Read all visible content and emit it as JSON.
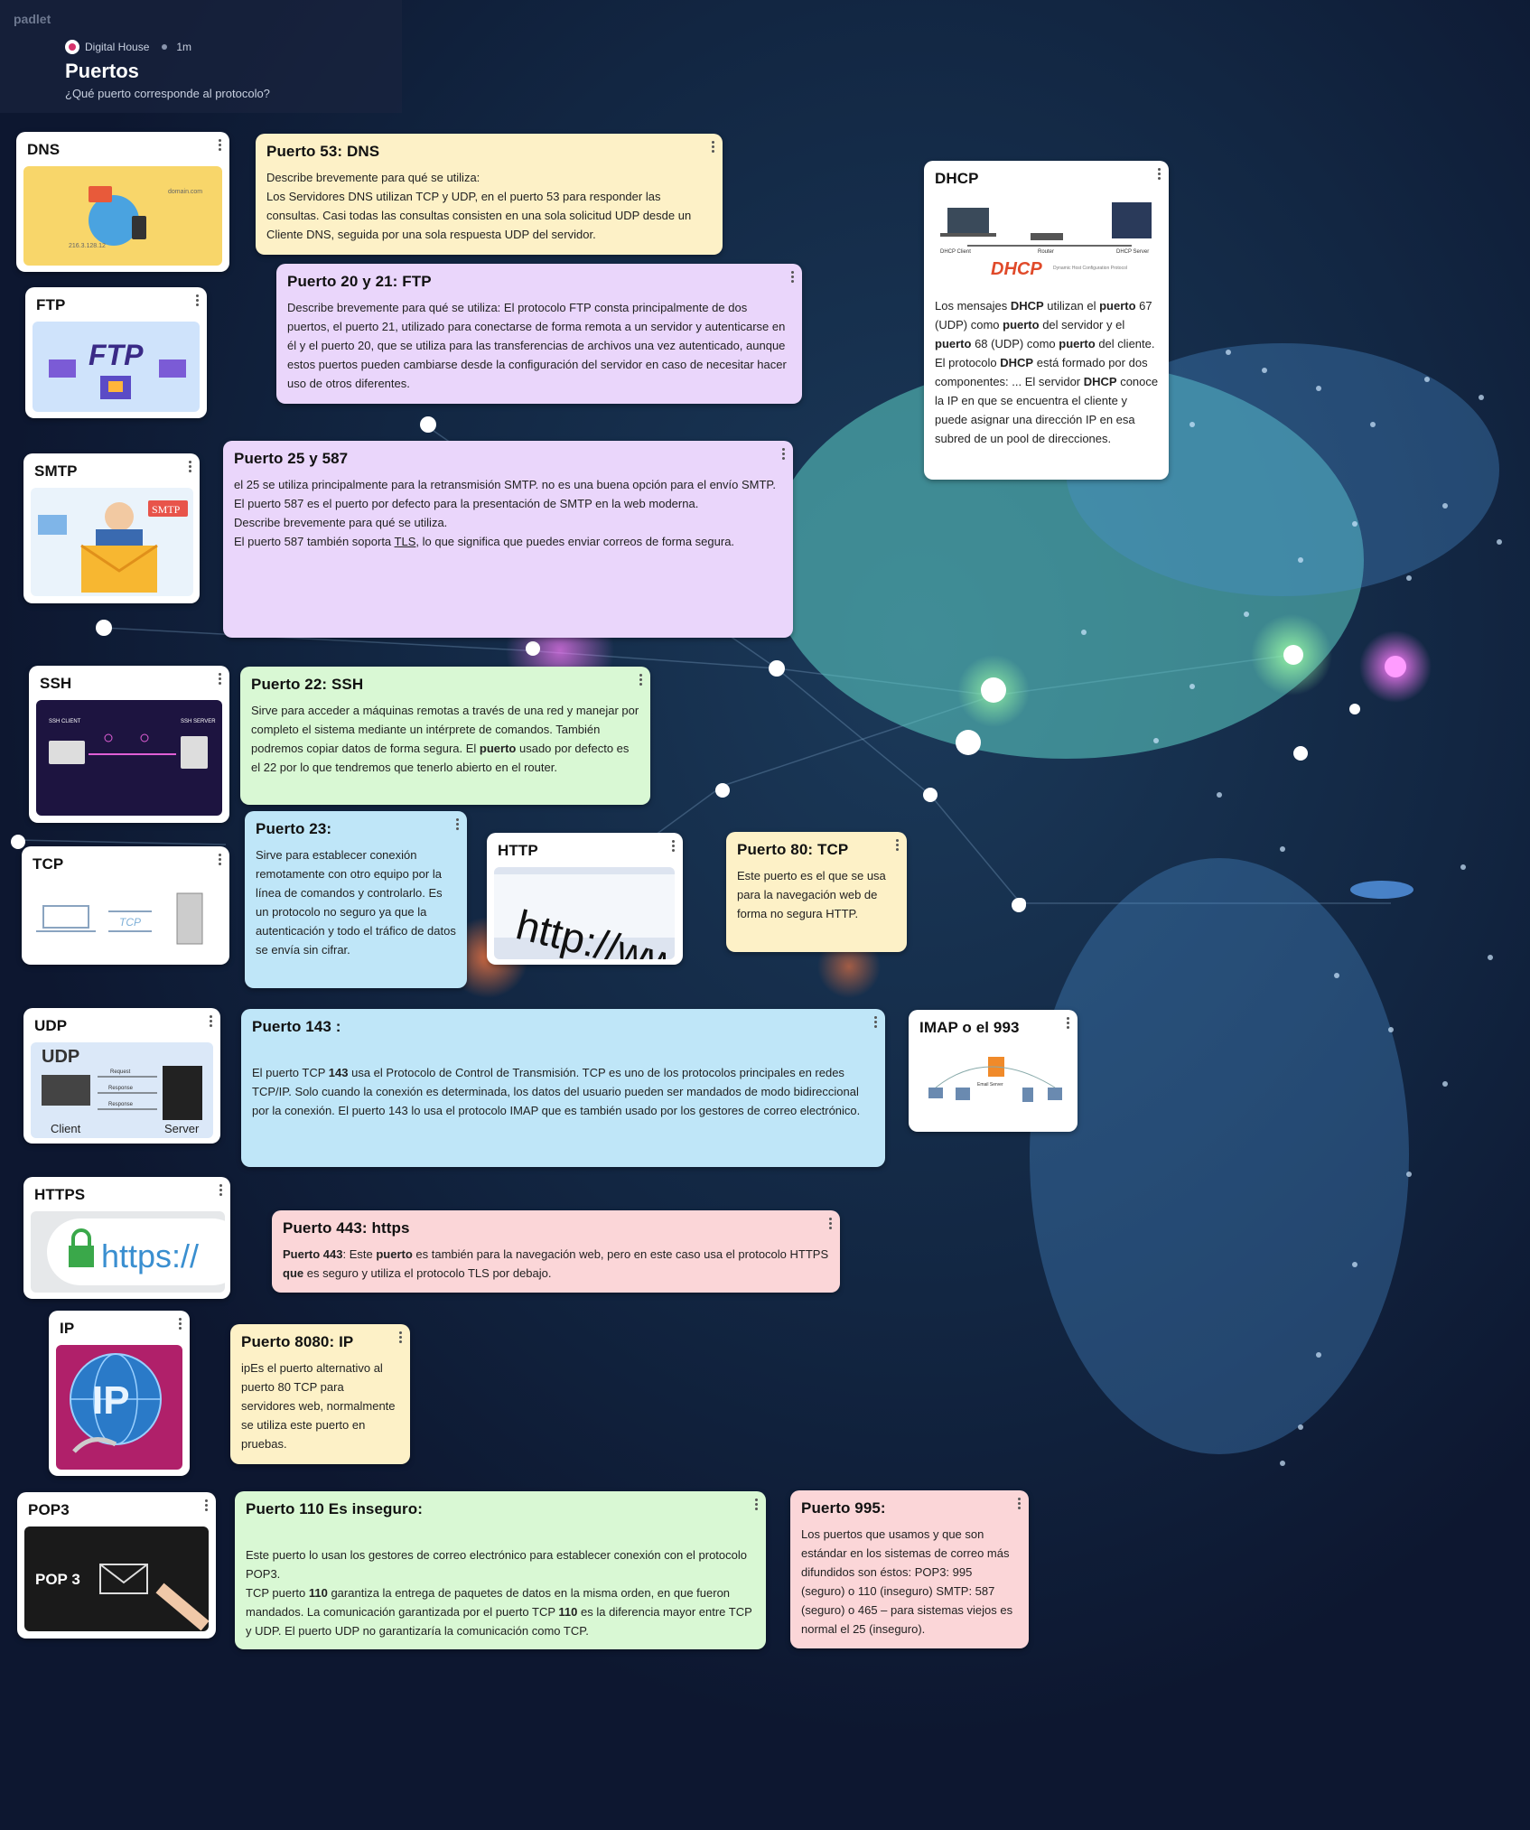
{
  "app": {
    "brand": "padlet"
  },
  "header": {
    "author": "Digital House",
    "age": "1m",
    "title": "Puertos",
    "subtitle": "¿Qué puerto corresponde al protocolo?"
  },
  "colors": {
    "background": "#0f1a33",
    "yellow": "#fdf1c7",
    "purple": "#ead6fb",
    "green": "#d9f8d4",
    "blue": "#bfe6f8",
    "pink": "#fbd6d8"
  },
  "cards": {
    "dns": {
      "title": "DNS",
      "image": "dns-illustration",
      "img_text_domain": "domain.com",
      "img_text_ip": "216.3.128.12"
    },
    "puerto53": {
      "title": "Puerto 53: DNS",
      "intro": "Describe brevemente para qué se utiliza:",
      "body": "Los Servidores DNS utilizan TCP y UDP, en el puerto 53 para responder las consultas. Casi todas las consultas consisten en una sola solicitud UDP desde un Cliente DNS, seguida por una sola respuesta UDP del servidor."
    },
    "ftp": {
      "title": "FTP",
      "image": "ftp-illustration",
      "img_text": "FTP"
    },
    "puerto20": {
      "title": "Puerto 20 y 21: FTP",
      "body": "Describe brevemente para qué se utiliza: El protocolo FTP consta principalmente de dos puertos, el puerto 21, utilizado para conectarse de forma remota a un servidor y autenticarse en él y el puerto 20, que se utiliza para las transferencias de archivos una vez autenticado, aunque estos puertos pueden cambiarse desde la configuración del servidor en caso de necesitar hacer uso de otros diferentes."
    },
    "dhcp": {
      "title": "DHCP",
      "image": "dhcp-diagram",
      "img_logo": "DHCP",
      "img_logo_sub": "Dynamic Host Configuration Protocol",
      "img_client": "DHCP Client",
      "img_router": "Router",
      "img_server": "DHCP Server",
      "body_parts": [
        "Los mensajes ",
        "DHCP",
        " utilizan el ",
        "puerto",
        " 67 (UDP) como ",
        "puerto",
        " del servidor y el ",
        "puerto",
        " 68 (UDP) como ",
        "puerto",
        " del cliente. El protocolo ",
        "DHCP",
        " está formado por dos componentes: ... El servidor ",
        "DHCP",
        " conoce la IP en que se encuentra el cliente y puede asignar una dirección IP en esa subred de un pool de direcciones."
      ]
    },
    "smtp": {
      "title": "SMTP",
      "image": "smtp-illustration",
      "img_text": "SMTP"
    },
    "puerto25": {
      "title": "Puerto 25 y 587",
      "line1": " el 25 se utiliza principalmente para la retransmisión SMTP. no es una buena opción para el envío SMTP.",
      "line2": "El puerto 587 es el puerto por defecto para la presentación de SMTP en la web moderna.",
      "line3": "Describe brevemente para qué se utiliza.",
      "line4a": "El puerto 587 también soporta ",
      "line4link": "TLS",
      "line4b": ", lo que significa que puedes enviar correos de forma segura."
    },
    "ssh": {
      "title": "SSH",
      "image": "ssh-diagram",
      "img_client": "SSH CLIENT",
      "img_server": "SSH SERVER"
    },
    "puerto22": {
      "title": "Puerto 22: SSH",
      "body_a": " Sirve para acceder a máquinas remotas a través de una red y manejar por completo el sistema mediante un intérprete de comandos. También podremos copiar datos de forma segura. El ",
      "body_bold": "puerto",
      "body_b": " usado por defecto es el 22 por lo que tendremos que tenerlo abierto en el router."
    },
    "tcp": {
      "title": "TCP",
      "image": "tcp-diagram",
      "img_text": "TCP"
    },
    "puerto23": {
      "title": "Puerto 23:",
      "body": "Sirve para establecer conexión remotamente con otro equipo por la línea de comandos y controlarlo. Es un protocolo no seguro ya que la autenticación y todo el tráfico de datos se envía sin cifrar."
    },
    "http": {
      "title": "HTTP",
      "image": "http-address-bar",
      "img_text": "http://www"
    },
    "puerto80": {
      "title": "Puerto 80: TCP",
      "body": "Este puerto es el que se usa para la navegación web de forma no segura HTTP."
    },
    "udp": {
      "title": "UDP",
      "image": "udp-diagram",
      "img_title": "UDP",
      "img_request": "Request",
      "img_response1": "Response",
      "img_response2": "Response",
      "img_client": "Client",
      "img_server": "Server"
    },
    "puerto143": {
      "title": "Puerto 143 :",
      "body_a": "El puerto TCP ",
      "body_bold": "143",
      "body_b": " usa el Protocolo de Control de Transmisión. TCP es uno de los protocolos principales en redes TCP/IP. Solo cuando la conexión es determinada, los datos del usuario pueden ser mandados de modo bidireccional por la conexión. El puerto 143 lo usa el protocolo IMAP que es también usado por los gestores de correo electrónico."
    },
    "imap": {
      "title": "IMAP o el 993",
      "image": "imap-network-diagram",
      "img_text": "Email Server"
    },
    "https": {
      "title": "HTTPS",
      "image": "https-lock",
      "img_text": "https://"
    },
    "puerto443": {
      "title": "Puerto 443: https",
      "b1": "Puerto 443",
      "t1": ": Este ",
      "b2": "puerto",
      "t2": " es también para la navegación web, pero en este caso usa el protocolo HTTPS ",
      "b3": "que",
      "t3": " es seguro y utiliza el protocolo TLS por debajo."
    },
    "ip": {
      "title": "IP",
      "image": "ip-globe",
      "img_text": "IP"
    },
    "puerto8080": {
      "title": "Puerto 8080: IP",
      "body": "ipEs el puerto alternativo al puerto 80 TCP para servidores web, normalmente se utiliza este puerto en pruebas."
    },
    "pop3": {
      "title": "POP3",
      "image": "pop3-envelope",
      "img_text": "POP 3"
    },
    "puerto110": {
      "title": "Puerto 110 Es inseguro:",
      "l1": "Este puerto lo usan los gestores de correo electrónico para establecer conexión con el protocolo POP3.",
      "l2a": "TCP puerto ",
      "l2b": "110",
      "l2c": " garantiza la entrega de paquetes de datos en la misma orden, en que fueron mandados. La comunicación garantizada por el puerto TCP ",
      "l2d": "110",
      "l2e": " es la diferencia mayor entre TCP y UDP. El puerto UDP no garantizaría la comunicación como TCP."
    },
    "puerto995": {
      "title": "Puerto 995:",
      "body": "Los puertos que usamos y que son estándar en los sistemas de correo más difundidos son éstos: POP3: 995 (seguro) o 110 (inseguro) SMTP: 587 (seguro) o 465 – para sistemas viejos es normal el 25 (inseguro)."
    }
  }
}
